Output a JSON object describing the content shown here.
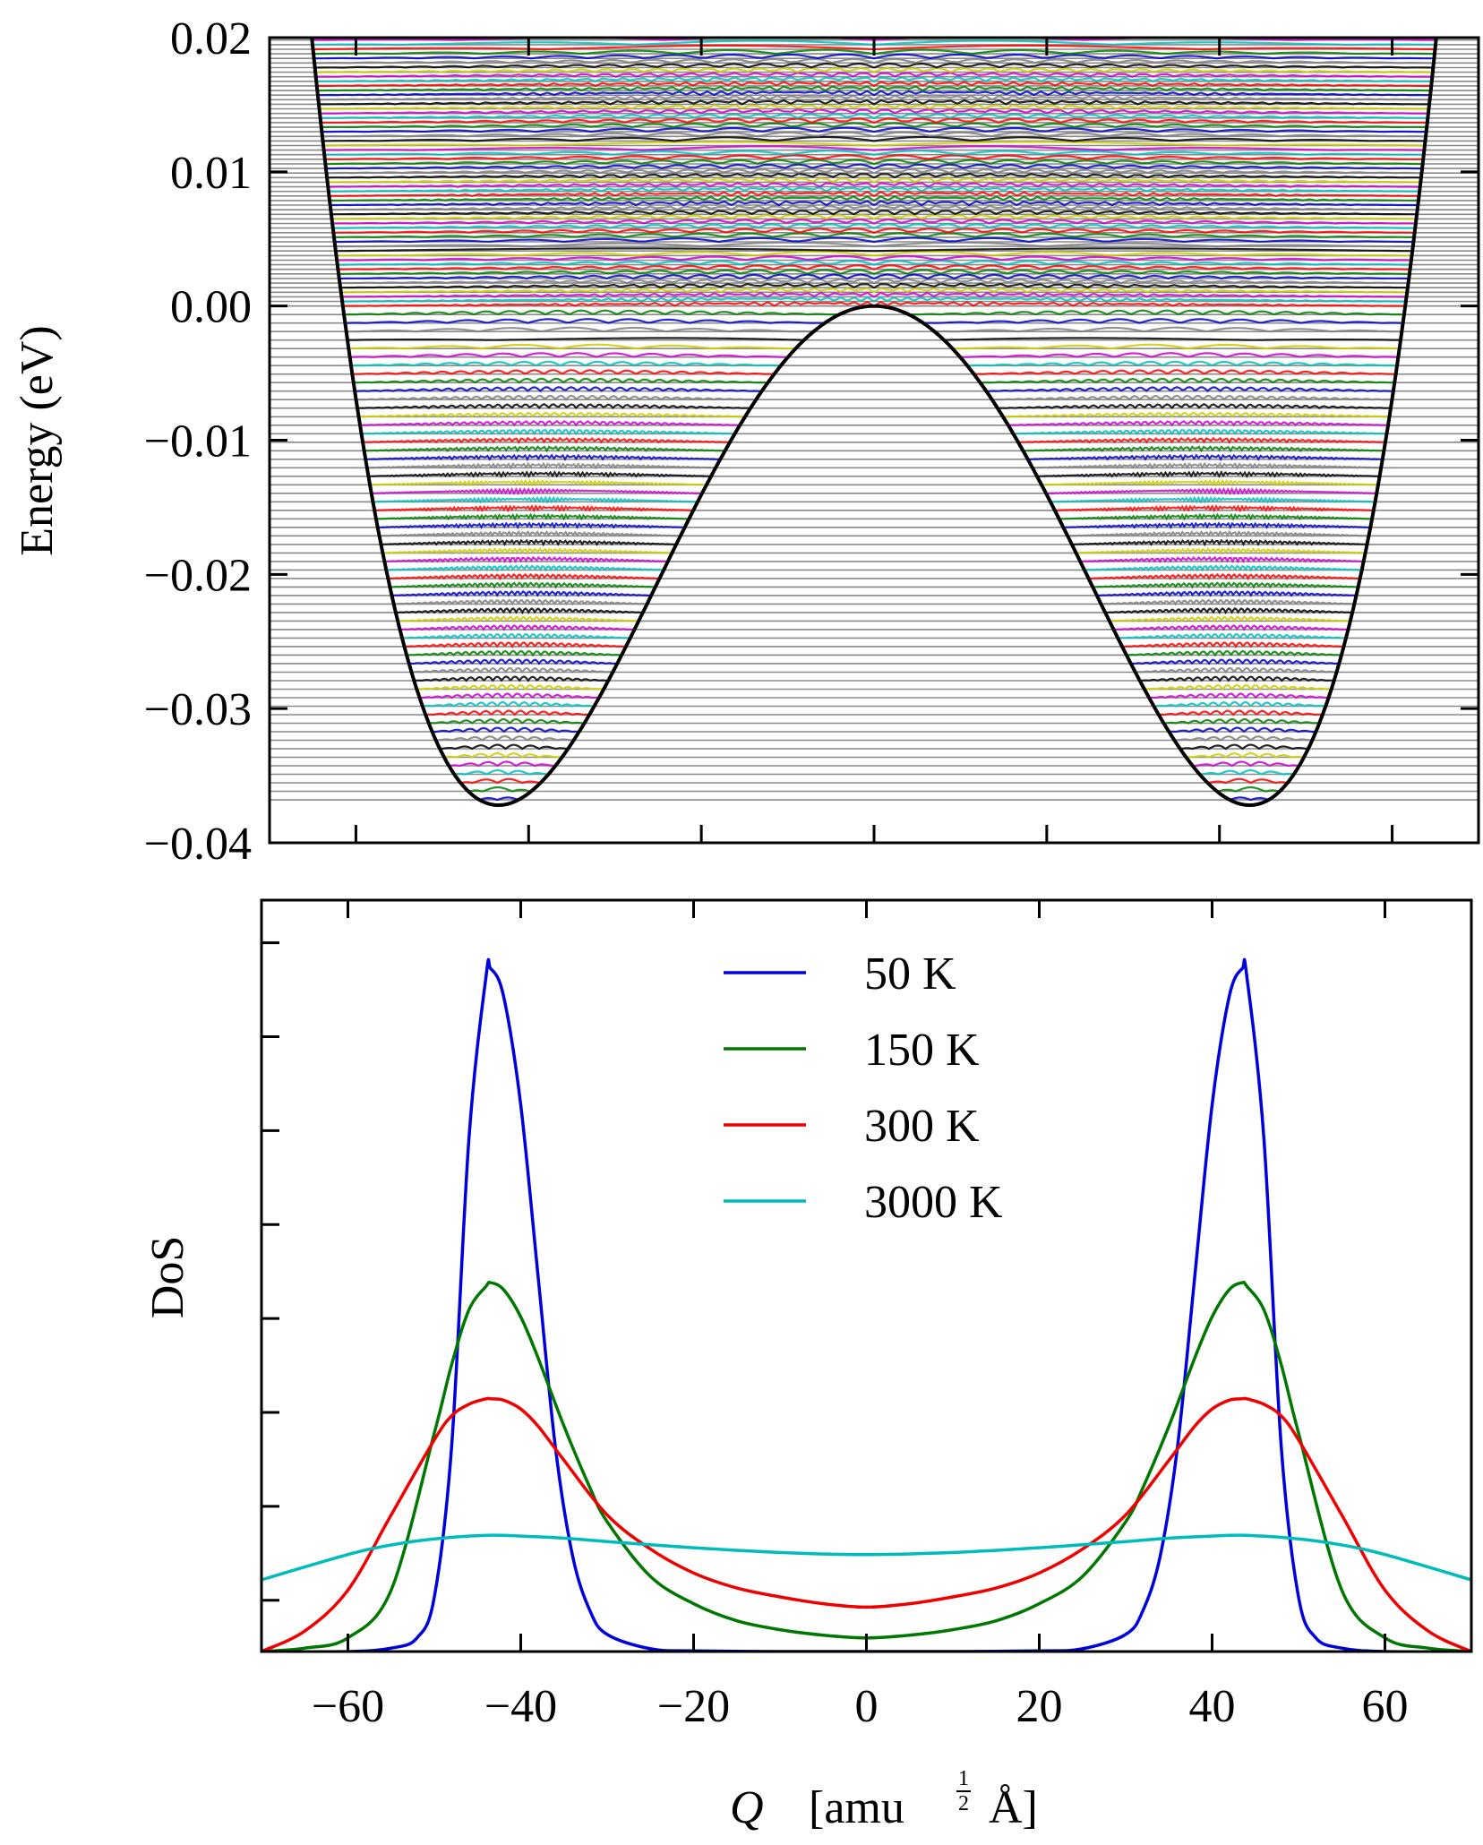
{
  "chart_data": [
    {
      "type": "line",
      "panel": "top",
      "description_visible": "Double-well potential energy curve with stacked vibrational wavefunctions",
      "xlabel": "",
      "ylabel": "Energy (eV)",
      "xlim": [
        -70,
        70
      ],
      "ylim": [
        -0.04,
        0.02
      ],
      "y_ticks": [
        -0.04,
        -0.03,
        -0.02,
        -0.01,
        0.0,
        0.01,
        0.02
      ],
      "y_tick_labels": [
        "−0.04",
        "−0.03",
        "−0.02",
        "−0.01",
        "0.00",
        "0.01",
        "0.02"
      ],
      "x_ticks": [
        -60,
        -40,
        -20,
        0,
        20,
        40,
        60
      ],
      "potential": {
        "well_positions": [
          -43.5,
          43.5
        ],
        "well_minimum": -0.0372,
        "barrier_top": 0.0,
        "color": "#000000"
      },
      "levels": {
        "lowest": -0.0368,
        "upper_limit": 0.0205,
        "count_below_barrier": 58,
        "count_above_barrier": 60
      },
      "wavefunction_colors": [
        "#0000cc",
        "#008000",
        "#ff0000",
        "#00bfbf",
        "#cc00cc",
        "#cccc00",
        "#000000",
        "#808080"
      ]
    },
    {
      "type": "line",
      "panel": "bottom",
      "xlabel": "Q  [amu½ Å]",
      "xlabel_parts": {
        "q": "Q",
        "bracket_open": "[amu",
        "sup_num": "1",
        "sup_den": "2",
        "unit": "Å]"
      },
      "ylabel": "DoS",
      "xlim": [
        -70,
        70
      ],
      "x_ticks": [
        -60,
        -40,
        -20,
        0,
        20,
        40,
        60
      ],
      "x_tick_labels": [
        "−60",
        "−40",
        "−20",
        "0",
        "20",
        "40",
        "60"
      ],
      "ylim": [
        0,
        1.1
      ],
      "y_tick_count": 8,
      "legend_position": "top-center",
      "series": [
        {
          "name": "50 K",
          "color": "#0000dd",
          "peak_height": 1.0,
          "min_height": 0.0,
          "x": [
            -70,
            -60,
            -55,
            -52,
            -50,
            -48,
            -46,
            -44,
            -43.5,
            -42,
            -40,
            -38,
            -36,
            -34,
            -32,
            -30,
            -25,
            -20,
            -10,
            0,
            10,
            20,
            25,
            30,
            32,
            34,
            36,
            38,
            40,
            42,
            43.5,
            44,
            46,
            48,
            50,
            52,
            55,
            60,
            70
          ],
          "values": [
            0,
            0,
            0.005,
            0.02,
            0.08,
            0.3,
            0.75,
            0.99,
            1.0,
            0.96,
            0.8,
            0.55,
            0.3,
            0.14,
            0.06,
            0.025,
            0.004,
            0.001,
            0,
            0,
            0,
            0.001,
            0.004,
            0.025,
            0.06,
            0.14,
            0.3,
            0.55,
            0.8,
            0.96,
            1.0,
            0.99,
            0.75,
            0.3,
            0.08,
            0.02,
            0.005,
            0,
            0
          ]
        },
        {
          "name": "150 K",
          "color": "#007700",
          "peak_height": 0.54,
          "min_height": 0.02,
          "x": [
            -70,
            -65,
            -60,
            -55,
            -50,
            -48,
            -46,
            -44,
            -43.5,
            -42,
            -40,
            -38,
            -35,
            -32,
            -30,
            -25,
            -20,
            -15,
            -10,
            -5,
            0,
            5,
            10,
            15,
            20,
            25,
            30,
            32,
            35,
            38,
            40,
            42,
            43.5,
            44,
            46,
            48,
            50,
            55,
            60,
            65,
            70
          ],
          "values": [
            0,
            0.005,
            0.02,
            0.09,
            0.32,
            0.42,
            0.5,
            0.535,
            0.54,
            0.53,
            0.49,
            0.43,
            0.33,
            0.24,
            0.19,
            0.11,
            0.07,
            0.045,
            0.032,
            0.024,
            0.02,
            0.024,
            0.032,
            0.045,
            0.07,
            0.11,
            0.19,
            0.24,
            0.33,
            0.43,
            0.49,
            0.53,
            0.54,
            0.535,
            0.5,
            0.42,
            0.32,
            0.09,
            0.02,
            0.005,
            0
          ]
        },
        {
          "name": "300 K",
          "color": "#ee0000",
          "peak_height": 0.37,
          "min_height": 0.065,
          "x": [
            -70,
            -65,
            -60,
            -55,
            -50,
            -48,
            -46,
            -44,
            -43.5,
            -42,
            -40,
            -38,
            -35,
            -30,
            -25,
            -20,
            -15,
            -10,
            -5,
            0,
            5,
            10,
            15,
            20,
            25,
            30,
            35,
            38,
            40,
            42,
            43.5,
            44,
            46,
            48,
            50,
            55,
            60,
            65,
            70
          ],
          "values": [
            0,
            0.03,
            0.09,
            0.2,
            0.31,
            0.345,
            0.362,
            0.37,
            0.37,
            0.368,
            0.355,
            0.33,
            0.28,
            0.2,
            0.15,
            0.115,
            0.093,
            0.08,
            0.07,
            0.065,
            0.07,
            0.08,
            0.093,
            0.115,
            0.15,
            0.2,
            0.28,
            0.33,
            0.355,
            0.368,
            0.37,
            0.37,
            0.362,
            0.345,
            0.31,
            0.2,
            0.09,
            0.03,
            0
          ]
        },
        {
          "name": "3000 K",
          "color": "#00bbbb",
          "peak_height": 0.17,
          "min_height": 0.14,
          "x": [
            -70,
            -60,
            -55,
            -50,
            -44,
            -40,
            -35,
            -30,
            -20,
            -10,
            0,
            10,
            20,
            30,
            35,
            40,
            44,
            50,
            55,
            60,
            70
          ],
          "values": [
            0.105,
            0.142,
            0.156,
            0.165,
            0.17,
            0.169,
            0.166,
            0.161,
            0.152,
            0.145,
            0.142,
            0.145,
            0.152,
            0.161,
            0.166,
            0.169,
            0.17,
            0.165,
            0.156,
            0.142,
            0.105
          ]
        }
      ]
    }
  ]
}
